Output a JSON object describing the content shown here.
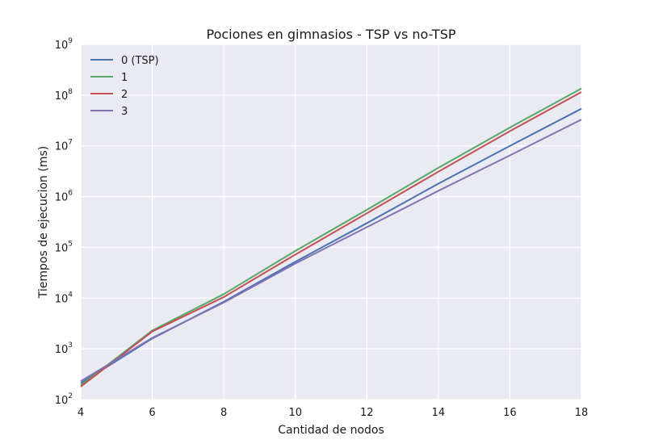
{
  "chart_data": {
    "type": "line",
    "title": "Pociones en gimnasios - TSP vs no-TSP",
    "xlabel": "Cantidad de nodos",
    "ylabel": "Tiempos de ejecucion (ms)",
    "xlim": [
      4,
      18
    ],
    "ylim": [
      100,
      1000000000
    ],
    "yscale": "log",
    "grid": true,
    "legend_position": "top-left",
    "x_ticks": [
      "4",
      "6",
      "8",
      "10",
      "12",
      "14",
      "16",
      "18"
    ],
    "y_ticks": [
      {
        "base": "10",
        "exp": "2"
      },
      {
        "base": "10",
        "exp": "3"
      },
      {
        "base": "10",
        "exp": "4"
      },
      {
        "base": "10",
        "exp": "5"
      },
      {
        "base": "10",
        "exp": "6"
      },
      {
        "base": "10",
        "exp": "7"
      },
      {
        "base": "10",
        "exp": "8"
      },
      {
        "base": "10",
        "exp": "9"
      }
    ],
    "x": [
      4,
      6,
      8,
      10,
      12,
      14,
      16,
      18
    ],
    "series": [
      {
        "name": "0 (TSP)",
        "color": "#4c72b0",
        "values": [
          210,
          1600,
          8500,
          52000,
          300000,
          1800000,
          10000000,
          54000000
        ]
      },
      {
        "name": "1",
        "color": "#55a868",
        "values": [
          190,
          2300,
          12000,
          85000,
          550000,
          3700000,
          23000000,
          135000000
        ]
      },
      {
        "name": "2",
        "color": "#c44e52",
        "values": [
          180,
          2200,
          10500,
          72000,
          470000,
          3100000,
          19500000,
          115000000
        ]
      },
      {
        "name": "3",
        "color": "#8172b2",
        "values": [
          230,
          1650,
          8200,
          48000,
          250000,
          1300000,
          6500000,
          33000000
        ]
      }
    ]
  },
  "colors": {
    "plot_background": "#eaeaf2",
    "grid": "#ffffff"
  }
}
